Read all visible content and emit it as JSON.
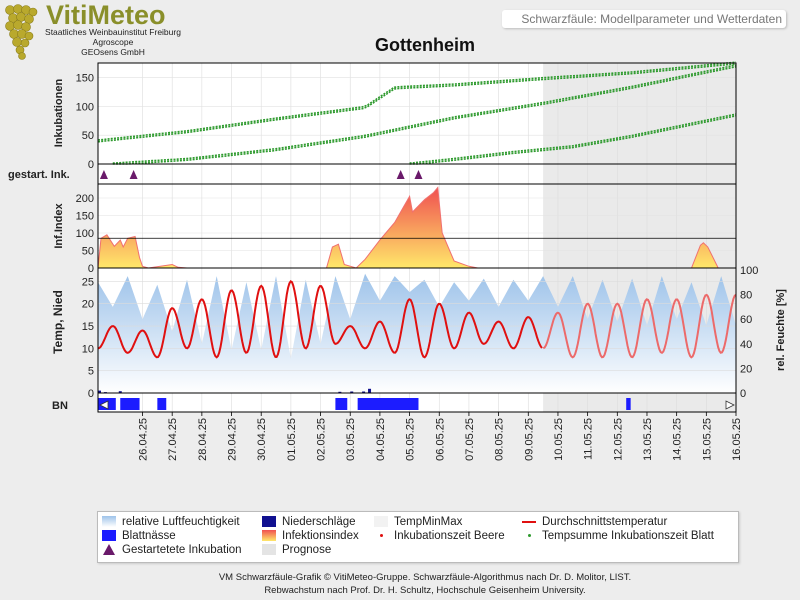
{
  "header": {
    "brand": "VitiMeteo",
    "institute": "Staatliches Weinbauinstitut Freiburg",
    "agroscope": "Agroscope",
    "geosens": "GEOsens GmbH",
    "subtitle": "Schwarzfäule: Modellparameter und Wetterdaten",
    "station": "Gottenheim"
  },
  "colors": {
    "incubation": "#2e9a2e",
    "temp_avg": "#e01010",
    "humidity": "#9ec3ea",
    "leaf_wetness": "#1c1cff",
    "precip": "#101090",
    "infection_low": "#ffe86a",
    "infection_high": "#f05050",
    "forecast": "#e8e8e8",
    "marker": "#6a1a6a"
  },
  "chart_data": {
    "type": "line",
    "x_dates": [
      "26.04.25",
      "27.04.25",
      "28.04.25",
      "29.04.25",
      "30.04.25",
      "01.05.25",
      "02.05.25",
      "03.05.25",
      "04.05.25",
      "05.05.25",
      "06.05.25",
      "07.05.25",
      "08.05.25",
      "09.05.25",
      "10.05.25",
      "11.05.25",
      "12.05.25",
      "13.05.25",
      "14.05.25",
      "15.05.25",
      "16.05.25"
    ],
    "x_range": [
      "24.04.25 12:00",
      "16.05.25 00:00"
    ],
    "forecast_start": "09.05.25 12:00",
    "panels": [
      {
        "ylabel": "Inkubationen",
        "yticks": [
          0,
          50,
          100,
          150
        ],
        "ylim": [
          0,
          175
        ],
        "series": [
          {
            "x_days": [
              0,
              3,
              6,
              9,
              10,
              12,
              15,
              18,
              21.5
            ],
            "values": [
              40,
              56,
              78,
              98,
              132,
              137,
              148,
              158,
              175
            ]
          },
          {
            "x_days": [
              0.5,
              3,
              6,
              9,
              12,
              15,
              18,
              21.5
            ],
            "values": [
              0,
              8,
              25,
              48,
              80,
              105,
              133,
              170
            ]
          },
          {
            "x_days": [
              10.5,
              12,
              14,
              16,
              18,
              21.5
            ],
            "values": [
              0,
              8,
              20,
              30,
              48,
              85
            ]
          }
        ]
      },
      {
        "ylabel": "gestart. Ink.",
        "markers_x_days": [
          0.2,
          1.2,
          10.2,
          10.8
        ]
      },
      {
        "ylabel": "Inf.Index",
        "yticks": [
          0,
          50,
          100,
          150,
          200
        ],
        "ylim": [
          0,
          240
        ],
        "series": [
          {
            "x_days": [
              0,
              0.1,
              0.3,
              0.45,
              0.55,
              0.75,
              0.85,
              1.0,
              1.25,
              1.4,
              1.5,
              1.7,
              2.5,
              2.7,
              3.0,
              7.7,
              7.9,
              8.1,
              8.3,
              8.7,
              9.0,
              9.5,
              10.0,
              10.3,
              10.5,
              10.6,
              11.0,
              11.3,
              11.45,
              11.6,
              12.0,
              12.5,
              12.8,
              20.0,
              20.3,
              20.4,
              20.55,
              20.9
            ],
            "values": [
              0,
              85,
              95,
              75,
              62,
              80,
              60,
              85,
              90,
              30,
              5,
              0,
              10,
              2,
              0,
              0,
              60,
              68,
              10,
              0,
              25,
              80,
              130,
              175,
              205,
              160,
              195,
              215,
              230,
              100,
              20,
              5,
              0,
              0,
              65,
              72,
              60,
              0
            ]
          }
        ]
      },
      {
        "ylabel": "Temp, Nied",
        "ylabel_right": "rel. Feuchte [%]",
        "yticks": [
          0,
          5,
          10,
          15,
          20,
          25
        ],
        "yticks_right": [
          0,
          20,
          40,
          60,
          80,
          100
        ],
        "ylim": [
          0,
          28
        ],
        "series": [
          {
            "name": "Durchschnittstemperatur",
            "x_days": [
              0,
              0.5,
              1,
              1.5,
              2,
              2.5,
              3,
              3.5,
              4,
              4.5,
              5,
              5.5,
              6,
              6.5,
              7,
              7.5,
              8,
              8.5,
              9,
              9.5,
              10,
              10.5,
              11,
              11.5,
              12,
              12.5,
              13,
              13.5,
              14,
              14.5,
              15,
              15.5,
              16,
              16.5,
              17,
              17.5,
              18,
              18.5,
              19,
              19.5,
              20,
              20.5,
              21,
              21.5
            ],
            "values": [
              10,
              15,
              9,
              14,
              8,
              19,
              10,
              21,
              8,
              23,
              9,
              24,
              8,
              25,
              10,
              24,
              11,
              15,
              10,
              16,
              9,
              21,
              8,
              20,
              10,
              18,
              11,
              16,
              10,
              17,
              10,
              18,
              8,
              20,
              8,
              20,
              8,
              21,
              9,
              21,
              8,
              22,
              9,
              22
            ]
          },
          {
            "name": "relative Luftfeuchtigkeit",
            "axis": "right",
            "x_days": [
              0,
              0.5,
              1,
              1.5,
              2,
              2.5,
              3,
              3.5,
              4,
              4.5,
              5,
              5.5,
              6,
              6.5,
              7,
              7.5,
              8,
              8.5,
              9,
              9.5,
              10,
              10.5,
              11,
              11.5,
              12,
              12.5,
              13,
              13.5,
              14,
              14.5,
              15,
              15.5,
              16,
              16.5,
              17,
              17.5,
              18,
              18.5,
              19,
              19.5,
              20,
              20.5,
              21,
              21.5
            ],
            "values": [
              90,
              70,
              95,
              60,
              88,
              50,
              92,
              40,
              95,
              35,
              90,
              35,
              95,
              28,
              92,
              40,
              95,
              60,
              97,
              75,
              95,
              82,
              92,
              70,
              90,
              75,
              93,
              70,
              92,
              75,
              95,
              70,
              95,
              60,
              92,
              58,
              93,
              55,
              95,
              60,
              90,
              55,
              95,
              55
            ]
          }
        ],
        "precip_x_days": [
          0.0,
          0.2,
          0.7,
          8.1,
          8.5,
          8.9,
          9.1
        ],
        "precip_values": [
          0.8,
          0.3,
          0.6,
          0.4,
          0.5,
          0.5,
          1.4
        ]
      },
      {
        "ylabel": "BN",
        "leaf_wetness_intervals": [
          [
            0,
            0.6
          ],
          [
            0.75,
            1.4
          ],
          [
            2.0,
            2.3
          ],
          [
            8.0,
            8.4
          ],
          [
            8.75,
            10.8
          ],
          [
            17.8,
            17.95
          ]
        ]
      }
    ]
  },
  "legend": {
    "items": [
      {
        "label": "relative Luftfeuchtigkeit",
        "swatch": "humidity"
      },
      {
        "label": "Blattnässe",
        "swatch": "leaf"
      },
      {
        "label": "Gestartetete Inkubation",
        "swatch": "triangle"
      },
      {
        "label": "Niederschläge",
        "swatch": "precip"
      },
      {
        "label": "Infektionsindex",
        "swatch": "infection"
      },
      {
        "label": "Prognose",
        "swatch": "forecast"
      },
      {
        "label": "TempMinMax",
        "swatch": "tempminmax"
      },
      {
        "label": "Inkubationszeit Beere",
        "swatch": "dot-red"
      },
      {
        "label": "Durchschnittstemperatur",
        "swatch": "line-red"
      },
      {
        "label": "Tempsumme Inkubationszeit Blatt",
        "swatch": "dot-green"
      }
    ]
  },
  "footer": {
    "line1": "VM Schwarzfäule-Grafik © VitiMeteo-Gruppe. Schwarzfäule-Algorithmus nach Dr. D. Molitor, LIST.",
    "line2": "Rebwachstum nach Prof. Dr. H. Schultz, Hochschule Geisenheim University."
  }
}
